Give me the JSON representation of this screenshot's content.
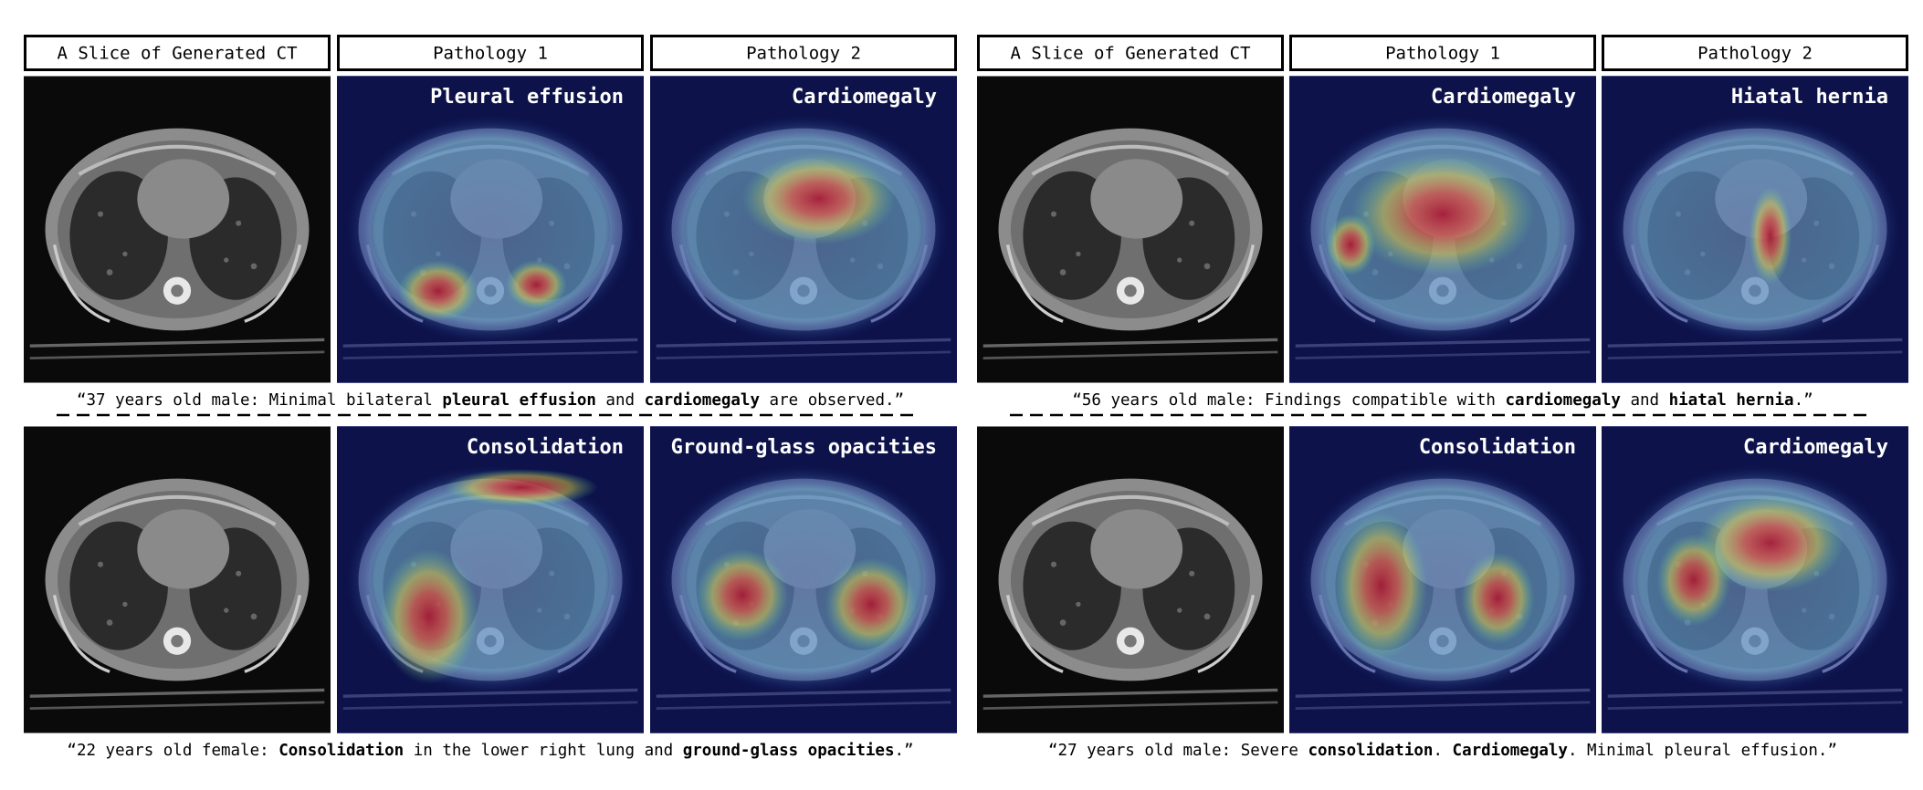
{
  "panels": [
    {
      "headers": [
        "A Slice of Generated CT",
        "Pathology 1",
        "Pathology 2"
      ],
      "rows": [
        {
          "labels": [
            "Pleural effusion",
            "Cardiomegaly"
          ],
          "caption": [
            {
              "text": "“37 years old male: Minimal bilateral ",
              "bold": false
            },
            {
              "text": "pleural effusion",
              "bold": true
            },
            {
              "text": " and ",
              "bold": false
            },
            {
              "text": "cardiomegaly",
              "bold": true
            },
            {
              "text": " are observed.”",
              "bold": false
            }
          ]
        },
        {
          "labels": [
            "Consolidation",
            "Ground-glass opacities"
          ],
          "caption": [
            {
              "text": "“22 years old female: ",
              "bold": false
            },
            {
              "text": "Consolidation",
              "bold": true
            },
            {
              "text": " in the lower right lung and ",
              "bold": false
            },
            {
              "text": "ground-glass opacities",
              "bold": true
            },
            {
              "text": ".”",
              "bold": false
            }
          ]
        }
      ]
    },
    {
      "headers": [
        "A Slice of Generated CT",
        "Pathology 1",
        "Pathology 2"
      ],
      "rows": [
        {
          "labels": [
            "Cardiomegaly",
            "Hiatal hernia"
          ],
          "caption": [
            {
              "text": "“56 years old male: Findings compatible with ",
              "bold": false
            },
            {
              "text": "cardiomegaly",
              "bold": true
            },
            {
              "text": " and ",
              "bold": false
            },
            {
              "text": "hiatal hernia",
              "bold": true
            },
            {
              "text": ".”",
              "bold": false
            }
          ]
        },
        {
          "labels": [
            "Consolidation",
            "Cardiomegaly"
          ],
          "caption": [
            {
              "text": "“27 years old male: Severe ",
              "bold": false
            },
            {
              "text": "consolidation",
              "bold": true
            },
            {
              "text": ". ",
              "bold": false
            },
            {
              "text": "Cardiomegaly",
              "bold": true
            },
            {
              "text": ". Minimal pleural effusion.”",
              "bold": false
            }
          ]
        }
      ]
    }
  ]
}
